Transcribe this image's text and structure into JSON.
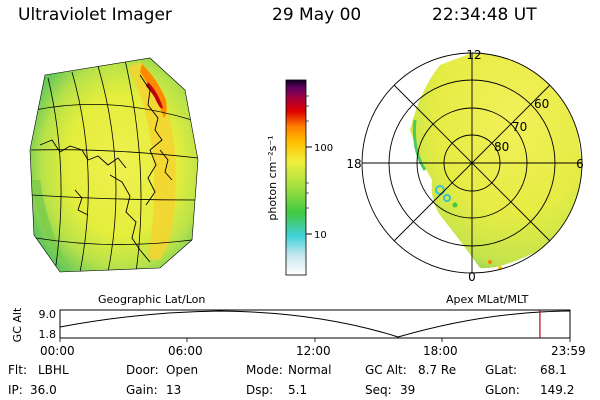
{
  "header": {
    "title": "Ultraviolet Imager",
    "date": "29 May 00",
    "time": "22:34:48 UT"
  },
  "colorbar": {
    "label": "photon cm⁻²s⁻¹",
    "ticks": [
      "100",
      "10"
    ],
    "scale": "log"
  },
  "geographic_panel": {
    "caption": "Geographic Lat/Lon"
  },
  "polar_panel": {
    "caption": "Apex MLat/MLT",
    "mlt_labels": [
      "12",
      "18",
      "6",
      "0"
    ],
    "mlat_labels": [
      "60",
      "70",
      "80"
    ]
  },
  "altitude_plot": {
    "ylabel": "GC Alt",
    "yticks": [
      "9.0",
      "1.8"
    ],
    "time_ticks": [
      "00:00",
      "06:00",
      "12:00",
      "18:00",
      "23:59"
    ],
    "current_time_fraction": 0.941,
    "marker_color": "#c00000"
  },
  "info": {
    "filter_label": "Flt:",
    "filter": "LBHL",
    "door_label": "Door:",
    "door": "Open",
    "mode_label": "Mode:",
    "mode": "Normal",
    "gcalt_label": "GC Alt:",
    "gcalt": "8.7 Re",
    "glat_label": "GLat:",
    "glat": "68.1",
    "ip_label": "IP:",
    "ip": "36.0",
    "gain_label": "Gain:",
    "gain": "13",
    "dsp_label": "Dsp:",
    "dsp": "5.1",
    "seq_label": "Seq:",
    "seq": "39",
    "glon_label": "GLon:",
    "glon": "149.2"
  },
  "colors": {
    "background": "#ffffff",
    "emission_base": "#e0ec3a",
    "emission_edge": "#8fd24a",
    "emission_bright": "#ff9a00",
    "emission_peak": "#c00010"
  }
}
